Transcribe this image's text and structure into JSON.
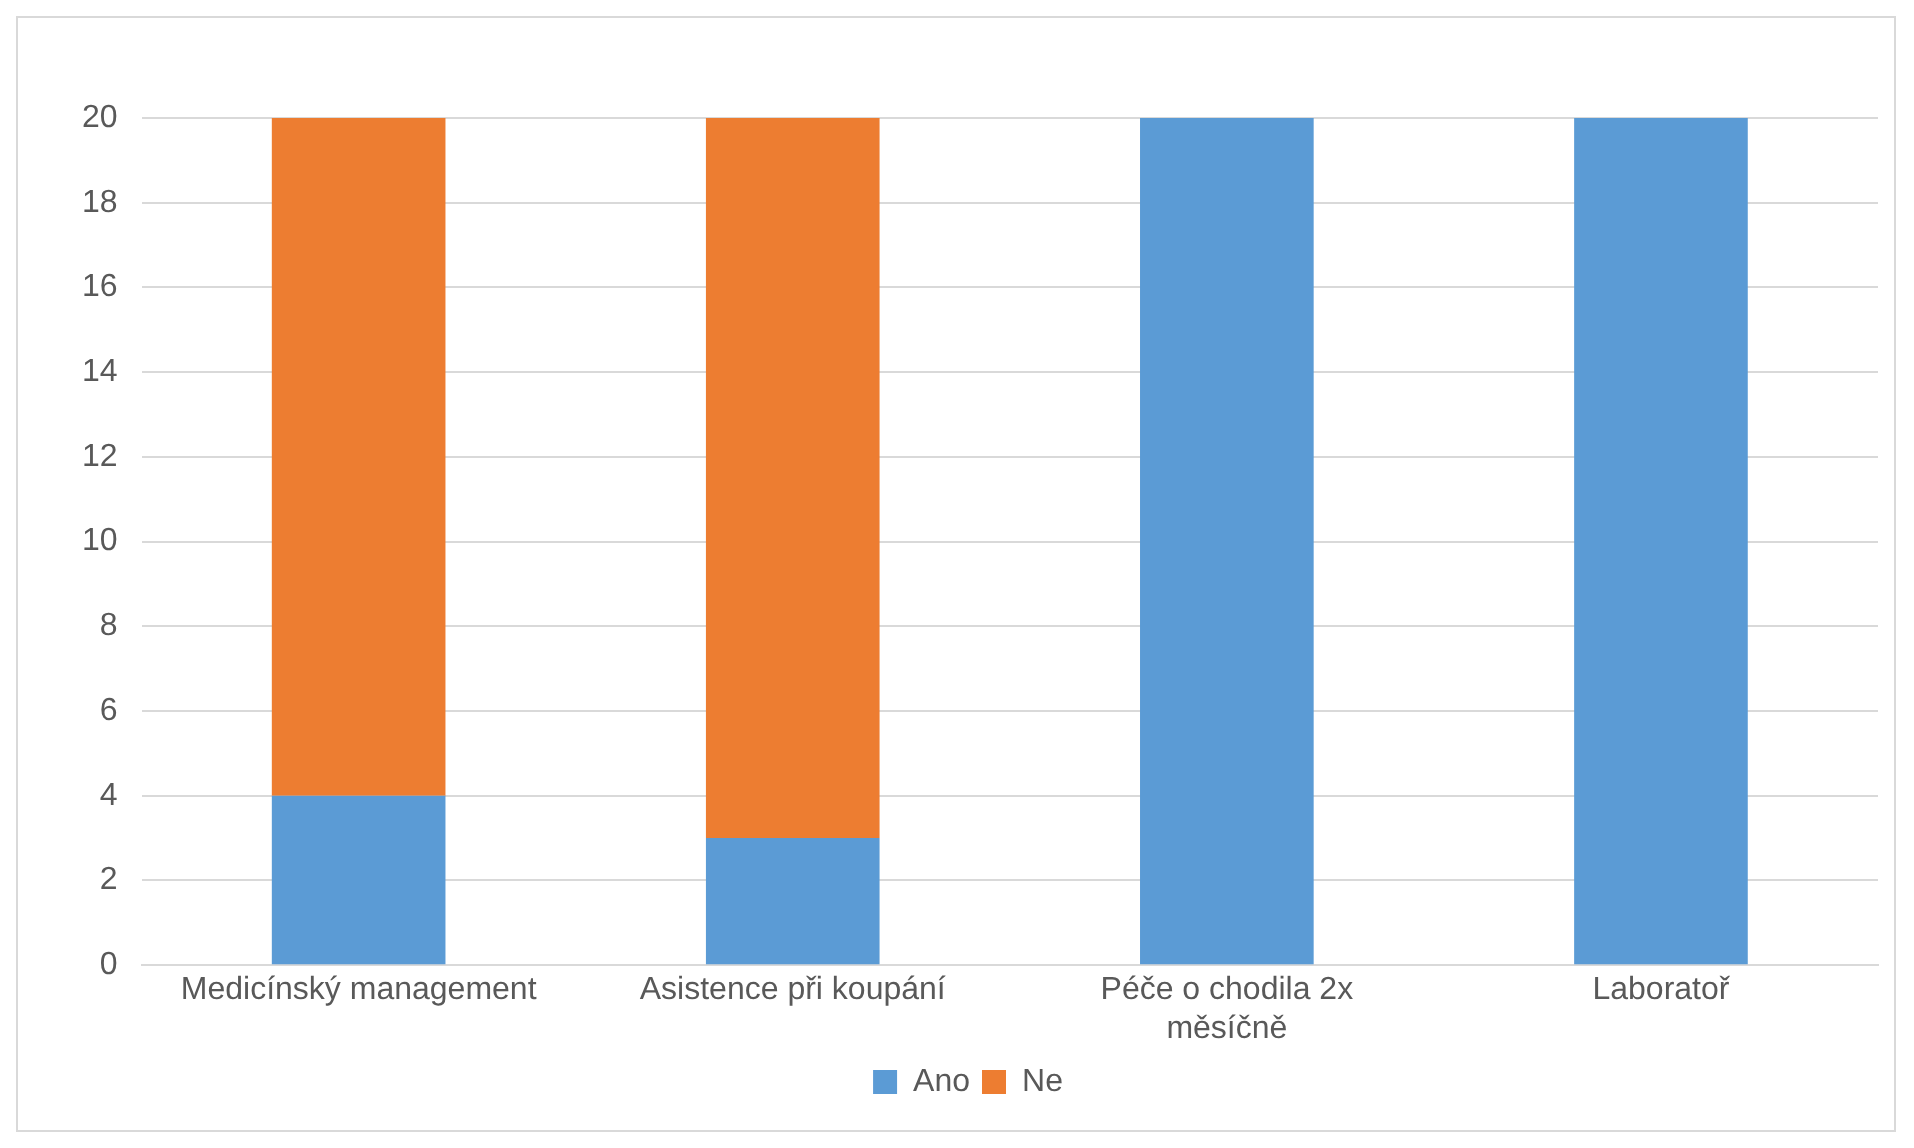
{
  "chart_data": {
    "type": "bar",
    "stacked": true,
    "categories": [
      "Medicínský management",
      "Asistence při koupání",
      "Péče o chodila 2x měsíčně",
      "Laboratoř"
    ],
    "series": [
      {
        "name": "Ano",
        "color": "#5b9bd5",
        "values": [
          4,
          3,
          20,
          20
        ]
      },
      {
        "name": "Ne",
        "color": "#ed7d31",
        "values": [
          16,
          17,
          0,
          0
        ]
      }
    ],
    "ylim": [
      0,
      20
    ],
    "yticks": [
      0,
      2,
      4,
      6,
      8,
      10,
      12,
      14,
      16,
      18,
      20
    ],
    "grid": "y",
    "legend": "bottom"
  }
}
